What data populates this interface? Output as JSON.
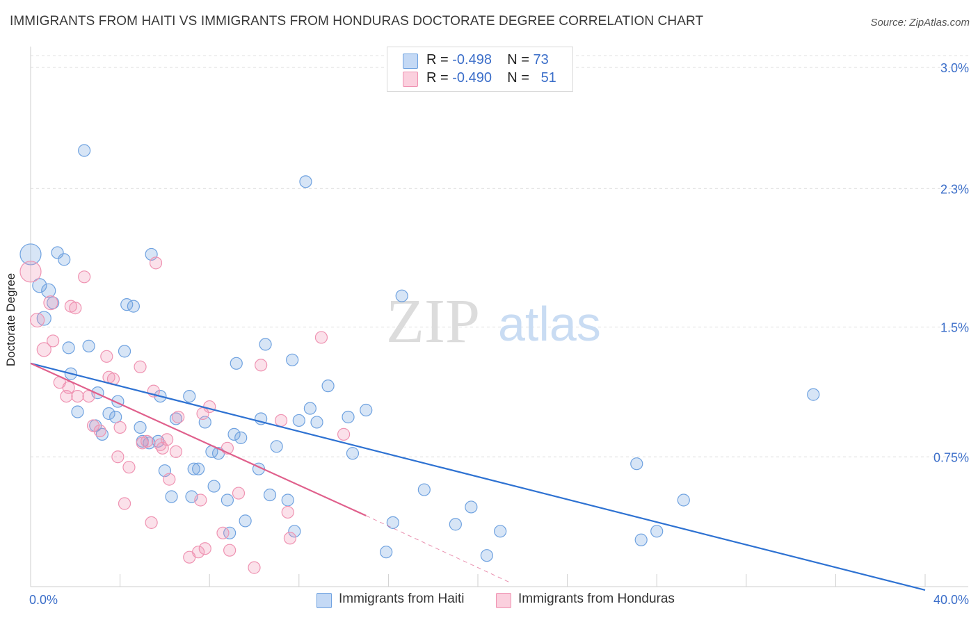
{
  "title": "IMMIGRANTS FROM HAITI VS IMMIGRANTS FROM HONDURAS DOCTORATE DEGREE CORRELATION CHART",
  "source": "Source: ZipAtlas.com",
  "watermark": {
    "zip": "ZIP",
    "atlas": "atlas"
  },
  "legend_top": {
    "rows": [
      {
        "r_label": "R =",
        "r_value": "-0.498",
        "n_label": "N =",
        "n_value": "73"
      },
      {
        "r_label": "R =",
        "r_value": "-0.490",
        "n_label": "N =",
        "n_value": "51"
      }
    ]
  },
  "chart_data": {
    "type": "scatter",
    "xlabel": "",
    "ylabel": "Doctorate Degree",
    "xlim": [
      0,
      40
    ],
    "ylim": [
      0,
      3.0
    ],
    "x_tick_labels": {
      "left": "0.0%",
      "right": "40.0%"
    },
    "y_ticks": [
      {
        "value": 0.75,
        "label": "0.75%"
      },
      {
        "value": 1.5,
        "label": "1.5%"
      },
      {
        "value": 2.3,
        "label": "2.3%"
      },
      {
        "value": 3.0,
        "label": "3.0%"
      }
    ],
    "grid": true,
    "legend_placement": "bottom",
    "colors": {
      "haiti": "#6fa2e0",
      "haiti_line": "#2e72d2",
      "honduras": "#ef93b2",
      "honduras_line": "#e0608c",
      "tick_label": "#3b6ec9"
    },
    "series": [
      {
        "name": "Immigrants from Haiti",
        "color": "#6fa2e0",
        "trend": {
          "x": [
            0,
            40
          ],
          "y": [
            1.29,
            -0.02
          ]
        },
        "points": [
          [
            0.0,
            1.92
          ],
          [
            0.4,
            1.74
          ],
          [
            0.8,
            1.71
          ],
          [
            1.0,
            1.64
          ],
          [
            0.6,
            1.55
          ],
          [
            1.2,
            1.93
          ],
          [
            1.5,
            1.89
          ],
          [
            2.4,
            2.52
          ],
          [
            5.4,
            1.92
          ],
          [
            4.3,
            1.63
          ],
          [
            4.6,
            1.62
          ],
          [
            1.7,
            1.38
          ],
          [
            2.6,
            1.39
          ],
          [
            4.2,
            1.36
          ],
          [
            1.8,
            1.23
          ],
          [
            3.0,
            1.12
          ],
          [
            3.9,
            1.07
          ],
          [
            2.1,
            1.01
          ],
          [
            3.5,
            1.0
          ],
          [
            3.8,
            0.98
          ],
          [
            2.9,
            0.93
          ],
          [
            3.2,
            0.88
          ],
          [
            4.9,
            0.92
          ],
          [
            5.8,
            1.1
          ],
          [
            6.5,
            0.97
          ],
          [
            7.1,
            1.1
          ],
          [
            5.0,
            0.84
          ],
          [
            5.7,
            0.84
          ],
          [
            5.3,
            0.83
          ],
          [
            7.5,
            0.68
          ],
          [
            6.0,
            0.67
          ],
          [
            6.3,
            0.52
          ],
          [
            7.2,
            0.52
          ],
          [
            7.3,
            0.68
          ],
          [
            7.8,
            0.95
          ],
          [
            8.1,
            0.78
          ],
          [
            8.4,
            0.77
          ],
          [
            8.2,
            0.58
          ],
          [
            8.8,
            0.5
          ],
          [
            8.9,
            0.31
          ],
          [
            9.1,
            0.88
          ],
          [
            9.4,
            0.86
          ],
          [
            9.2,
            1.29
          ],
          [
            10.2,
            0.68
          ],
          [
            9.6,
            0.38
          ],
          [
            10.3,
            0.97
          ],
          [
            10.5,
            1.4
          ],
          [
            11.0,
            0.81
          ],
          [
            10.7,
            0.53
          ],
          [
            11.5,
            0.5
          ],
          [
            11.8,
            0.32
          ],
          [
            11.7,
            1.31
          ],
          [
            12.0,
            0.96
          ],
          [
            12.5,
            1.03
          ],
          [
            12.8,
            0.95
          ],
          [
            13.3,
            1.16
          ],
          [
            14.2,
            0.98
          ],
          [
            14.4,
            0.77
          ],
          [
            15.0,
            1.02
          ],
          [
            15.9,
            0.2
          ],
          [
            16.2,
            0.37
          ],
          [
            16.6,
            1.68
          ],
          [
            17.6,
            0.56
          ],
          [
            19.0,
            0.36
          ],
          [
            19.7,
            0.46
          ],
          [
            20.4,
            0.18
          ],
          [
            21.0,
            0.32
          ],
          [
            27.1,
            0.71
          ],
          [
            27.3,
            0.27
          ],
          [
            28.0,
            0.32
          ],
          [
            29.2,
            0.5
          ],
          [
            35.0,
            1.11
          ],
          [
            12.3,
            2.34
          ]
        ]
      },
      {
        "name": "Immigrants from Honduras",
        "color": "#ef93b2",
        "trend": {
          "x": [
            0,
            15
          ],
          "y": [
            1.29,
            0.41
          ]
        },
        "trend_dashed": {
          "x": [
            15,
            21.5
          ],
          "y": [
            0.41,
            0.02
          ]
        },
        "points": [
          [
            0.0,
            1.82
          ],
          [
            0.3,
            1.54
          ],
          [
            0.6,
            1.37
          ],
          [
            0.9,
            1.64
          ],
          [
            1.0,
            1.42
          ],
          [
            1.3,
            1.18
          ],
          [
            1.6,
            1.1
          ],
          [
            1.7,
            1.15
          ],
          [
            1.8,
            1.62
          ],
          [
            2.0,
            1.61
          ],
          [
            2.1,
            1.1
          ],
          [
            2.4,
            1.79
          ],
          [
            2.6,
            1.1
          ],
          [
            2.8,
            0.93
          ],
          [
            3.1,
            0.9
          ],
          [
            3.4,
            1.33
          ],
          [
            3.5,
            1.21
          ],
          [
            3.7,
            1.2
          ],
          [
            3.9,
            0.75
          ],
          [
            4.0,
            0.92
          ],
          [
            4.2,
            0.48
          ],
          [
            4.4,
            0.69
          ],
          [
            4.9,
            1.27
          ],
          [
            5.0,
            0.83
          ],
          [
            5.2,
            0.84
          ],
          [
            5.5,
            1.13
          ],
          [
            5.6,
            1.87
          ],
          [
            5.8,
            0.82
          ],
          [
            5.9,
            0.8
          ],
          [
            5.4,
            0.37
          ],
          [
            6.1,
            0.85
          ],
          [
            6.2,
            0.62
          ],
          [
            6.5,
            0.78
          ],
          [
            6.6,
            0.98
          ],
          [
            7.1,
            0.17
          ],
          [
            7.5,
            0.2
          ],
          [
            7.6,
            0.5
          ],
          [
            7.8,
            0.22
          ],
          [
            7.7,
            1.0
          ],
          [
            8.0,
            1.04
          ],
          [
            8.6,
            0.31
          ],
          [
            8.8,
            0.8
          ],
          [
            8.9,
            0.21
          ],
          [
            9.3,
            0.54
          ],
          [
            10.0,
            0.11
          ],
          [
            10.3,
            1.28
          ],
          [
            11.2,
            0.96
          ],
          [
            11.5,
            0.43
          ],
          [
            11.6,
            0.28
          ],
          [
            13.0,
            1.44
          ],
          [
            14.0,
            0.88
          ]
        ]
      }
    ]
  },
  "legend_bottom": [
    {
      "label": "Immigrants from Haiti"
    },
    {
      "label": "Immigrants from Honduras"
    }
  ]
}
